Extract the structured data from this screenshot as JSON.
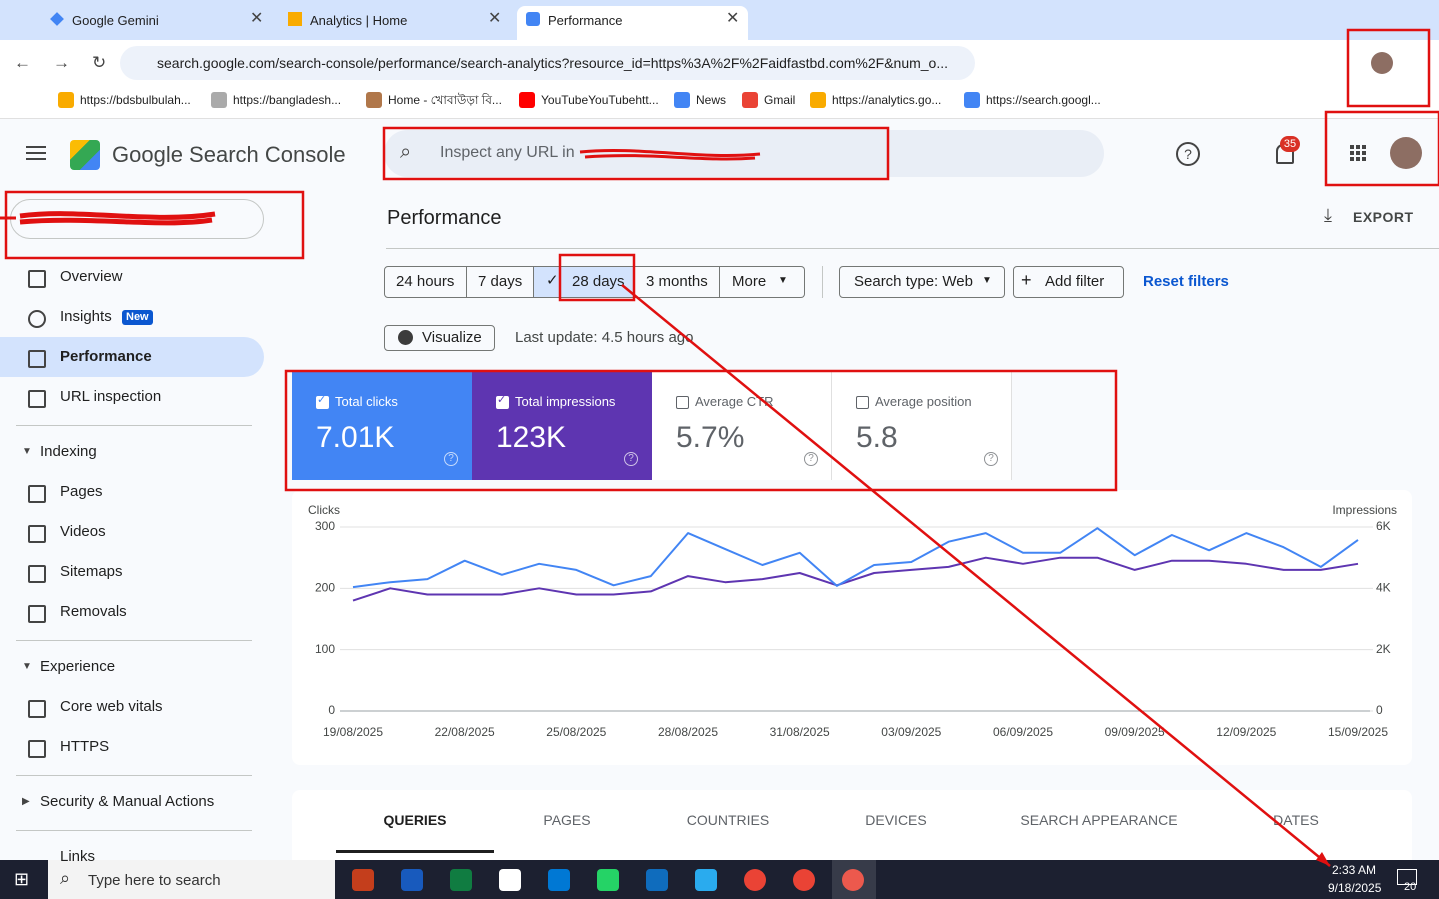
{
  "browser": {
    "tabs": [
      "Google Gemini",
      "Analytics | Home",
      "Performance"
    ],
    "url": "search.google.com/search-console/performance/search-analytics?resource_id=https%3A%2F%2Faidfastbd.com%2F&num_o...",
    "bookmarks": [
      "https://bdsbulbulah...",
      "https://bangladesh...",
      "Home - খোবাউড়া বি...",
      "YouTubeYouTubehtt...",
      "News",
      "Gmail",
      "https://analytics.go...",
      "https://search.googl..."
    ]
  },
  "header": {
    "logo": "Google Search Console",
    "search_placeholder": "Inspect any URL in",
    "notifications": "35"
  },
  "sidebar": {
    "items": [
      "Overview",
      "Insights",
      "Performance",
      "URL inspection"
    ],
    "insights_badge": "New",
    "indexing": {
      "title": "Indexing",
      "items": [
        "Pages",
        "Videos",
        "Sitemaps",
        "Removals"
      ]
    },
    "experience": {
      "title": "Experience",
      "items": [
        "Core web vitals",
        "HTTPS"
      ]
    },
    "security": "Security & Manual Actions",
    "links": "Links"
  },
  "main": {
    "title": "Performance",
    "export": "EXPORT",
    "ranges": [
      "24 hours",
      "7 days",
      "28 days",
      "3 months",
      "More"
    ],
    "search_type": "Search type: Web",
    "add_filter": "Add filter",
    "reset_filters": "Reset filters",
    "visualize": "Visualize",
    "last_update": "Last update: 4.5 hours ago",
    "cards": [
      {
        "label": "Total clicks",
        "value": "7.01K"
      },
      {
        "label": "Total impressions",
        "value": "123K"
      },
      {
        "label": "Average CTR",
        "value": "5.7%"
      },
      {
        "label": "Average position",
        "value": "5.8"
      }
    ],
    "tabs": [
      "QUERIES",
      "PAGES",
      "COUNTRIES",
      "DEVICES",
      "SEARCH APPEARANCE",
      "DATES"
    ]
  },
  "chart_data": {
    "type": "line",
    "ylabel": "Clicks",
    "y2label": "Impressions",
    "x": [
      "19/08/2025",
      null,
      null,
      "22/08/2025",
      null,
      null,
      "25/08/2025",
      null,
      null,
      "28/08/2025",
      null,
      null,
      "31/08/2025",
      null,
      null,
      "03/09/2025",
      null,
      null,
      "06/09/2025",
      null,
      null,
      "09/09/2025",
      null,
      null,
      "12/09/2025",
      null,
      null,
      "15/09/2025"
    ],
    "ylim": [
      0,
      300
    ],
    "yticks": [
      0,
      100,
      200,
      300
    ],
    "y2lim": [
      0,
      6000
    ],
    "y2ticks": [
      0,
      {
        "value": 2000,
        "label": "2K"
      },
      {
        "value": 4000,
        "label": "4K"
      },
      {
        "value": 6000,
        "label": "6K"
      }
    ],
    "grid": true,
    "series": [
      {
        "name": "Total clicks",
        "color": "#4285f4",
        "values": [
          202,
          210,
          215,
          245,
          222,
          240,
          230,
          205,
          220,
          290,
          264,
          238,
          258,
          204,
          238,
          243,
          276,
          290,
          258,
          258,
          298,
          254,
          287,
          262,
          290,
          267,
          235,
          279
        ]
      },
      {
        "name": "Total impressions",
        "color": "#5e35b1",
        "axis": "y2",
        "values": [
          3600,
          4000,
          3800,
          3800,
          3800,
          4000,
          3800,
          3800,
          3900,
          4400,
          4200,
          4300,
          4500,
          4100,
          4500,
          4600,
          4700,
          5000,
          4800,
          5000,
          5000,
          4600,
          4900,
          4900,
          4800,
          4600,
          4600,
          4800
        ]
      }
    ]
  },
  "taskbar": {
    "search": "Type here to search",
    "time": "2:33 AM",
    "date": "9/18/2025",
    "notifications": "20"
  }
}
